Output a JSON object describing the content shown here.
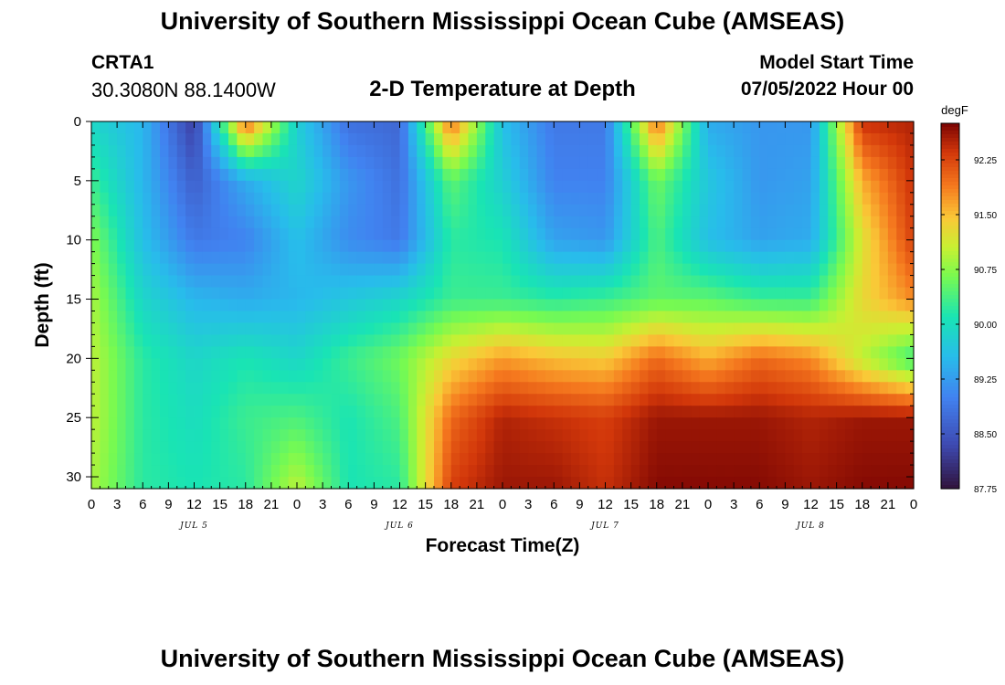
{
  "header": {
    "title": "University of Southern Mississippi Ocean Cube (AMSEAS)",
    "station": "CRTA1",
    "coords": "30.3080N  88.1400W",
    "plot_title": "2-D Temperature at Depth",
    "start_label": "Model Start Time",
    "start_value": "07/05/2022 Hour 00"
  },
  "footer": {
    "title": "University of Southern Mississippi Ocean Cube (AMSEAS)"
  },
  "chart_data": {
    "type": "heatmap",
    "title": "2-D Temperature at Depth",
    "xlabel": "Forecast Time(Z)",
    "ylabel": "Depth (ft)",
    "x_range_hours": [
      0,
      96
    ],
    "ylim": [
      0,
      31
    ],
    "x_tick_labels": [
      "0",
      "3",
      "6",
      "9",
      "12",
      "15",
      "18",
      "21",
      "0",
      "3",
      "6",
      "9",
      "12",
      "15",
      "18",
      "21",
      "0",
      "3",
      "6",
      "9",
      "12",
      "15",
      "18",
      "21",
      "0",
      "3",
      "6",
      "9",
      "12",
      "15",
      "18",
      "21",
      "0"
    ],
    "y_ticks": [
      0,
      5,
      10,
      15,
      20,
      25,
      30
    ],
    "date_labels": [
      {
        "label": "JUL 5",
        "hour": 12
      },
      {
        "label": "JUL 6",
        "hour": 36
      },
      {
        "label": "JUL 7",
        "hour": 60
      },
      {
        "label": "JUL 8",
        "hour": 84
      }
    ],
    "colorbar": {
      "unit": "degF",
      "min": 87.75,
      "max": 92.75,
      "tick_labels": [
        "92.25",
        "91.50",
        "90.75",
        "90.00",
        "89.25",
        "88.50",
        "87.75"
      ],
      "tick_values": [
        92.25,
        91.5,
        90.75,
        90.0,
        89.25,
        88.5,
        87.75
      ]
    },
    "hours": [
      0,
      6,
      12,
      18,
      24,
      30,
      36,
      42,
      48,
      54,
      60,
      66,
      72,
      78,
      84,
      90,
      96
    ],
    "depths_ft": [
      0,
      5,
      10,
      15,
      20,
      25,
      31
    ],
    "values_degF": [
      [
        89.9,
        89.5,
        88.2,
        92.1,
        89.8,
        88.8,
        88.7,
        92.0,
        89.6,
        88.9,
        88.9,
        92.0,
        89.4,
        89.2,
        89.2,
        92.4,
        92.5
      ],
      [
        90.3,
        89.5,
        88.6,
        89.4,
        89.9,
        89.2,
        88.8,
        90.5,
        89.8,
        89.0,
        89.0,
        90.6,
        89.7,
        89.2,
        89.3,
        91.6,
        92.4
      ],
      [
        90.7,
        89.6,
        88.9,
        89.0,
        89.6,
        89.1,
        88.9,
        90.2,
        90.1,
        89.3,
        89.2,
        90.4,
        89.6,
        89.3,
        89.4,
        91.2,
        92.3
      ],
      [
        90.9,
        89.9,
        89.5,
        89.4,
        89.5,
        89.7,
        89.9,
        90.3,
        90.3,
        90.2,
        90.3,
        90.5,
        90.5,
        90.3,
        90.3,
        91.3,
        91.8
      ],
      [
        91.0,
        90.2,
        89.9,
        90.1,
        89.9,
        90.3,
        90.6,
        91.3,
        91.7,
        91.5,
        91.4,
        92.0,
        91.6,
        92.0,
        91.8,
        91.0,
        90.3
      ],
      [
        91.0,
        90.2,
        90.0,
        90.3,
        90.4,
        90.1,
        90.4,
        92.0,
        92.5,
        92.4,
        92.3,
        92.6,
        92.6,
        92.6,
        92.5,
        92.6,
        92.6
      ],
      [
        90.9,
        90.2,
        90.1,
        90.2,
        91.0,
        90.1,
        90.2,
        92.3,
        92.6,
        92.6,
        92.4,
        92.7,
        92.7,
        92.7,
        92.6,
        92.7,
        92.7
      ]
    ]
  }
}
